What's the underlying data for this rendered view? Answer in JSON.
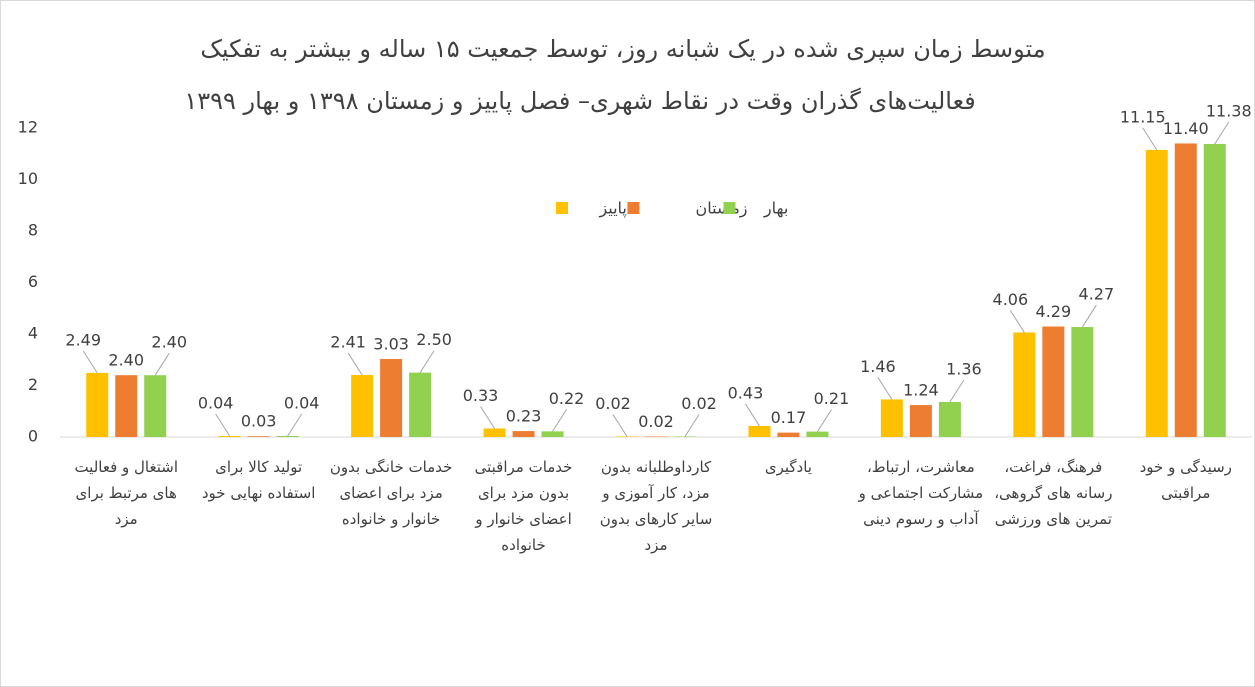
{
  "chart_data": {
    "type": "bar",
    "title": [
      "متوسط زمان سپری شده در یک شبانه روز، توسط جمعیت ۱۵ ساله و بیشتر به تفکیک",
      "فعالیت‌های گذران وقت در نقاط شهری– فصل پاییز و زمستان ۱۳۹۸ و بهار ۱۳۹۹"
    ],
    "categories": [
      "اشتغال و فعالیت های مرتبط برای مزد",
      "تولید کالا برای استفاده نهایی خود",
      "خدمات خانگی بدون مزد برای اعضای خانوار و خانواده",
      "خدمات مراقبتی بدون مزد برای اعضای خانوار و خانواده",
      "کارداوطلبانه بدون مزد، کار آموزی و سایر کارهای بدون مزد",
      "یادگیری",
      "معاشرت، ارتباط، مشارکت اجتماعی و آداب و رسوم دینی",
      "فرهنگ، فراغت، رسانه های گروهی، تمرین های ورزشی",
      "رسیدگی و خود مراقبتی"
    ],
    "series": [
      {
        "name": "پاییز",
        "color": "#FFC000",
        "values": [
          2.49,
          0.04,
          2.41,
          0.33,
          0.02,
          0.43,
          1.46,
          4.06,
          11.15
        ],
        "value_labels": [
          "2.49",
          "0.04",
          "2.41",
          "0.33",
          "0.02",
          "0.43",
          "1.46",
          "4.06",
          "11.15"
        ]
      },
      {
        "name": "زمستان",
        "color": "#ED7D31",
        "values": [
          2.4,
          0.03,
          3.03,
          0.23,
          0.02,
          0.17,
          1.24,
          4.29,
          11.4
        ],
        "value_labels": [
          "2.40",
          "0.03",
          "3.03",
          "0.23",
          "0.02",
          "0.17",
          "1.24",
          "4.29",
          "11.40"
        ]
      },
      {
        "name": "بهار",
        "color": "#92D050",
        "values": [
          2.4,
          0.04,
          2.5,
          0.22,
          0.02,
          0.21,
          1.36,
          4.27,
          11.38
        ],
        "value_labels": [
          "2.40",
          "0.04",
          "2.50",
          "0.22",
          "0.02",
          "0.21",
          "1.36",
          "4.27",
          "11.38"
        ]
      }
    ],
    "ylim": [
      0,
      12
    ],
    "yticks": [
      0,
      2,
      4,
      6,
      8,
      10,
      12
    ],
    "grid": false
  }
}
